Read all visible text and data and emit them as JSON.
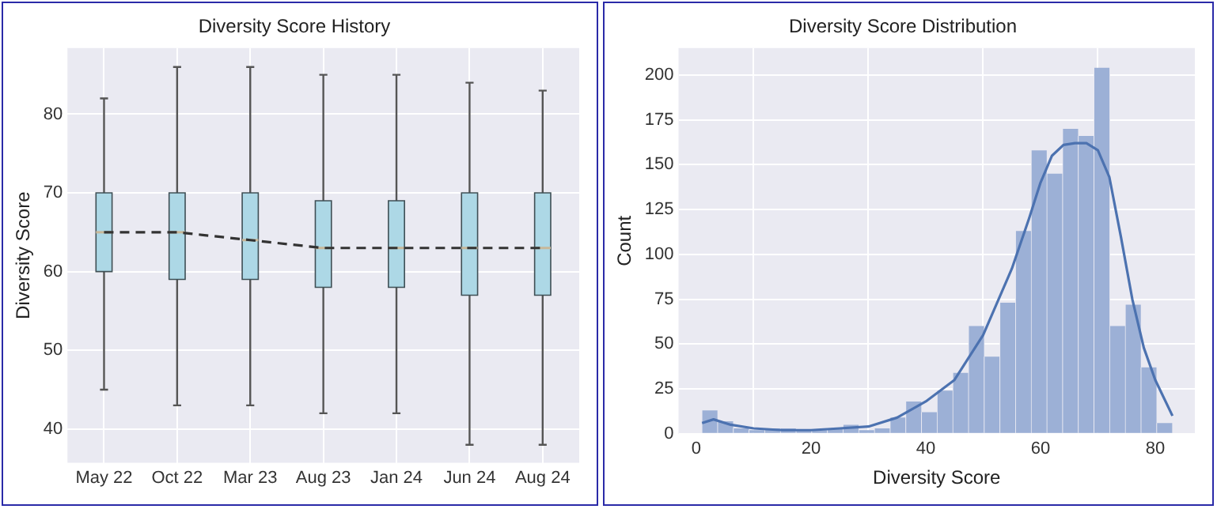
{
  "chart_data": [
    {
      "type": "box",
      "title": "Diversity Score History",
      "ylabel": "Diversity Score",
      "categories": [
        "May 22",
        "Oct 22",
        "Mar 23",
        "Aug 23",
        "Jan 24",
        "Jun 24",
        "Aug 24"
      ],
      "series": [
        {
          "type": "box",
          "color": "#add8e6",
          "boxes": [
            {
              "low": 45,
              "q1": 60,
              "median": 65,
              "q3": 70,
              "high": 82
            },
            {
              "low": 43,
              "q1": 59,
              "median": 65,
              "q3": 70,
              "high": 86
            },
            {
              "low": 43,
              "q1": 59,
              "median": 64,
              "q3": 70,
              "high": 86
            },
            {
              "low": 42,
              "q1": 58,
              "median": 63,
              "q3": 69,
              "high": 85
            },
            {
              "low": 42,
              "q1": 58,
              "median": 63,
              "q3": 69,
              "high": 85
            },
            {
              "low": 38,
              "q1": 57,
              "median": 63,
              "q3": 70,
              "high": 84
            },
            {
              "low": 38,
              "q1": 57,
              "median": 63,
              "q3": 70,
              "high": 83
            }
          ]
        },
        {
          "type": "line",
          "color": "#333333",
          "line_style": "dashed",
          "values": [
            65,
            65,
            64,
            63,
            63,
            63,
            63
          ]
        }
      ],
      "ylim": [
        35.7,
        88.4
      ],
      "yticks": [
        40,
        50,
        60,
        70,
        80
      ],
      "grid": true,
      "marker": "none"
    },
    {
      "type": "histogram",
      "title": "Diversity Score Distribution",
      "xlabel": "Diversity Score",
      "ylabel": "Count",
      "bins": [
        1,
        3.73,
        6.47,
        9.2,
        11.93,
        14.67,
        17.4,
        20.13,
        22.87,
        25.6,
        28.33,
        31.07,
        33.8,
        36.53,
        39.27,
        42,
        44.73,
        47.47,
        50.2,
        52.93,
        55.67,
        58.4,
        61.13,
        63.87,
        66.6,
        69.33,
        72.07,
        74.8,
        77.53,
        80.27,
        83
      ],
      "series": [
        {
          "type": "histogram",
          "color": "#9cb0d6",
          "values": [
            13,
            7,
            3,
            2,
            3,
            3,
            2,
            2,
            3,
            5,
            2,
            3,
            9,
            18,
            12,
            24,
            34,
            60,
            43,
            73,
            113,
            158,
            145,
            170,
            166,
            204,
            60,
            72,
            37,
            6
          ]
        },
        {
          "type": "line",
          "color": "#4c72b0",
          "x": [
            1,
            3,
            6,
            10,
            15,
            20,
            25,
            30,
            35,
            40,
            45,
            50,
            55,
            58,
            60,
            62,
            64,
            66,
            68,
            70,
            72,
            74,
            76,
            78,
            80,
            83
          ],
          "values": [
            6,
            8,
            5,
            3,
            2,
            2,
            3,
            4,
            9,
            18,
            30,
            55,
            92,
            120,
            140,
            155,
            161,
            162,
            162,
            158,
            143,
            110,
            75,
            48,
            30,
            10
          ]
        }
      ],
      "xlim": [
        -3.1,
        86.9
      ],
      "xticks": [
        0,
        20,
        40,
        60,
        80
      ],
      "ylim": [
        0,
        215
      ],
      "yticks": [
        0,
        25,
        50,
        75,
        100,
        125,
        150,
        175,
        200
      ],
      "grid": true,
      "marker": "none"
    }
  ]
}
